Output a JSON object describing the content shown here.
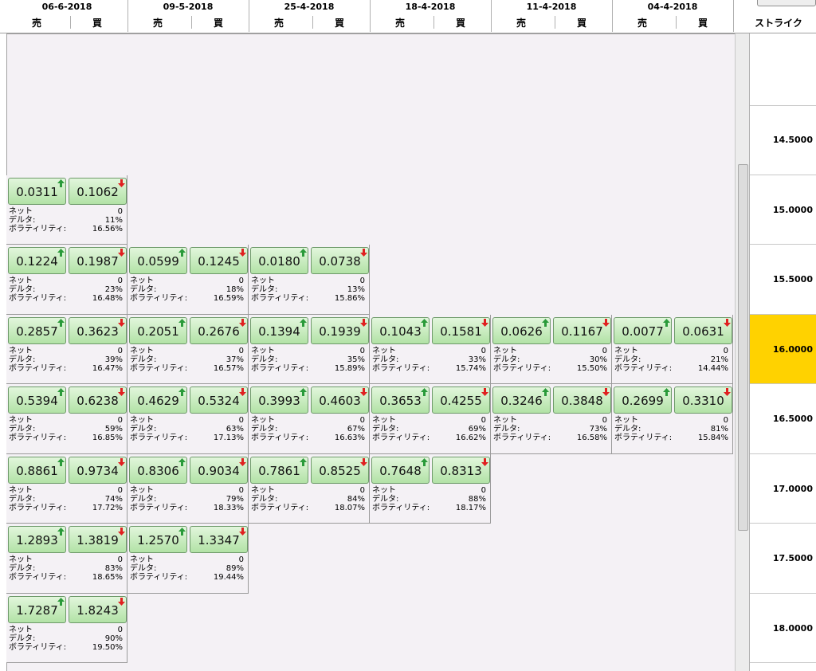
{
  "header": {
    "expiries": [
      {
        "date": "06-6-2018"
      },
      {
        "date": "09-5-2018"
      },
      {
        "date": "25-4-2018"
      },
      {
        "date": "18-4-2018"
      },
      {
        "date": "11-4-2018"
      },
      {
        "date": "04-4-2018"
      }
    ],
    "sell": "売",
    "buy": "買",
    "strike": "ストライク"
  },
  "labels": {
    "net": "ネット",
    "delta": "デルタ:",
    "vol": "ボラティリティ:"
  },
  "rows": [
    {
      "strike": "14.5000",
      "cells": []
    },
    {
      "strike": "15.0000",
      "cells": [
        {
          "sell": "0.0311",
          "buy": "0.1062",
          "net": "0",
          "delta": "11%",
          "vol": "16.56%"
        }
      ]
    },
    {
      "strike": "15.5000",
      "cells": [
        {
          "sell": "0.1224",
          "buy": "0.1987",
          "net": "0",
          "delta": "23%",
          "vol": "16.48%"
        },
        {
          "sell": "0.0599",
          "buy": "0.1245",
          "net": "0",
          "delta": "18%",
          "vol": "16.59%"
        },
        {
          "sell": "0.0180",
          "buy": "0.0738",
          "net": "0",
          "delta": "13%",
          "vol": "15.86%"
        }
      ]
    },
    {
      "strike": "16.0000",
      "cells": [
        {
          "sell": "0.2857",
          "buy": "0.3623",
          "net": "0",
          "delta": "39%",
          "vol": "16.47%"
        },
        {
          "sell": "0.2051",
          "buy": "0.2676",
          "net": "0",
          "delta": "37%",
          "vol": "16.57%"
        },
        {
          "sell": "0.1394",
          "buy": "0.1939",
          "net": "0",
          "delta": "35%",
          "vol": "15.89%"
        },
        {
          "sell": "0.1043",
          "buy": "0.1581",
          "net": "0",
          "delta": "33%",
          "vol": "15.74%"
        },
        {
          "sell": "0.0626",
          "buy": "0.1167",
          "net": "0",
          "delta": "30%",
          "vol": "15.50%"
        },
        {
          "sell": "0.0077",
          "buy": "0.0631",
          "net": "0",
          "delta": "21%",
          "vol": "14.44%"
        }
      ]
    },
    {
      "strike": "16.5000",
      "cells": [
        {
          "sell": "0.5394",
          "buy": "0.6238",
          "net": "0",
          "delta": "59%",
          "vol": "16.85%"
        },
        {
          "sell": "0.4629",
          "buy": "0.5324",
          "net": "0",
          "delta": "63%",
          "vol": "17.13%"
        },
        {
          "sell": "0.3993",
          "buy": "0.4603",
          "net": "0",
          "delta": "67%",
          "vol": "16.63%"
        },
        {
          "sell": "0.3653",
          "buy": "0.4255",
          "net": "0",
          "delta": "69%",
          "vol": "16.62%"
        },
        {
          "sell": "0.3246",
          "buy": "0.3848",
          "net": "0",
          "delta": "73%",
          "vol": "16.58%"
        },
        {
          "sell": "0.2699",
          "buy": "0.3310",
          "net": "0",
          "delta": "81%",
          "vol": "15.84%"
        }
      ]
    },
    {
      "strike": "17.0000",
      "cells": [
        {
          "sell": "0.8861",
          "buy": "0.9734",
          "net": "0",
          "delta": "74%",
          "vol": "17.72%"
        },
        {
          "sell": "0.8306",
          "buy": "0.9034",
          "net": "0",
          "delta": "79%",
          "vol": "18.33%"
        },
        {
          "sell": "0.7861",
          "buy": "0.8525",
          "net": "0",
          "delta": "84%",
          "vol": "18.07%"
        },
        {
          "sell": "0.7648",
          "buy": "0.8313",
          "net": "0",
          "delta": "88%",
          "vol": "18.17%"
        }
      ]
    },
    {
      "strike": "17.5000",
      "cells": [
        {
          "sell": "1.2893",
          "buy": "1.3819",
          "net": "0",
          "delta": "83%",
          "vol": "18.65%"
        },
        {
          "sell": "1.2570",
          "buy": "1.3347",
          "net": "0",
          "delta": "89%",
          "vol": "19.44%"
        }
      ]
    },
    {
      "strike": "18.0000",
      "cells": [
        {
          "sell": "1.7287",
          "buy": "1.8243",
          "net": "0",
          "delta": "90%",
          "vol": "19.50%"
        }
      ]
    }
  ]
}
